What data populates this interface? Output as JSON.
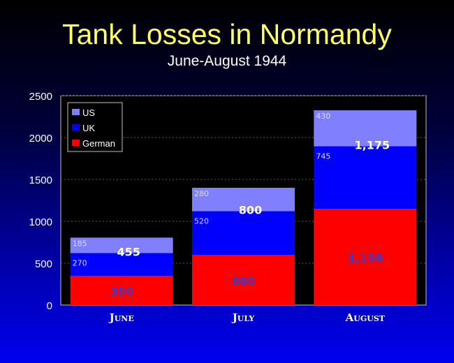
{
  "title": "Tank Losses in Normandy",
  "subtitle": "June-August 1944",
  "chart_data": {
    "type": "bar",
    "stacked": true,
    "categories": [
      "June",
      "July",
      "August"
    ],
    "series": [
      {
        "name": "German",
        "values": [
          350,
          600,
          1150
        ],
        "color": "#ff0000",
        "labels": [
          "350",
          "600",
          "1,150"
        ]
      },
      {
        "name": "UK",
        "values": [
          270,
          520,
          745
        ],
        "color": "#0000ff",
        "labels": [
          "270",
          "520",
          "745"
        ]
      },
      {
        "name": "US",
        "values": [
          185,
          280,
          430
        ],
        "color": "#8080ff",
        "labels": [
          "185",
          "280",
          "430"
        ]
      }
    ],
    "allied_totals": [
      "455",
      "800",
      "1,175"
    ],
    "ylim": [
      0,
      2500
    ],
    "yticks": [
      0,
      500,
      1000,
      1500,
      2000,
      2500
    ],
    "legend": [
      "US",
      "UK",
      "German"
    ],
    "legend_position": "top-left",
    "grid": true,
    "plot_background": "#000000"
  }
}
